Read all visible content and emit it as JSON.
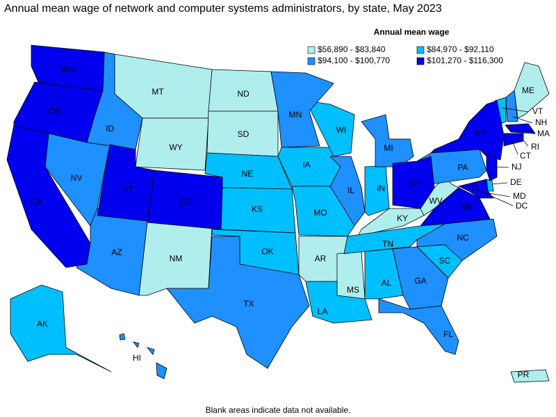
{
  "title": "Annual mean wage of network and computer systems administrators, by state, May 2023",
  "legend": {
    "title": "Annual mean wage",
    "items": [
      {
        "label": "$56,890 - $83,840",
        "color": "#b0eeee",
        "states": [
          "MT",
          "WY",
          "NM",
          "ND",
          "SD",
          "AR",
          "MS",
          "KY",
          "WV",
          "ME",
          "PR"
        ]
      },
      {
        "label": "$84,970 - $92,110",
        "color": "#00bfff",
        "states": [
          "NE",
          "KS",
          "OK",
          "IA",
          "MO",
          "LA",
          "WI",
          "IN",
          "TN",
          "AL",
          "SC",
          "VT",
          "DE",
          "AK"
        ]
      },
      {
        "label": "$94,100 - $100,770",
        "color": "#1e90ff",
        "states": [
          "NV",
          "ID",
          "AZ",
          "TX",
          "MN",
          "IL",
          "MI",
          "GA",
          "FL",
          "NC",
          "PA",
          "NH",
          "HI"
        ]
      },
      {
        "label": "$101,270 - $116,300",
        "color": "#0000ee",
        "states": [
          "WA",
          "OR",
          "CA",
          "UT",
          "CO",
          "OH",
          "VA",
          "MD",
          "NY",
          "NJ",
          "MA",
          "CT",
          "RI",
          "DC"
        ]
      }
    ]
  },
  "footnote": "Blank areas indicate data not available."
}
